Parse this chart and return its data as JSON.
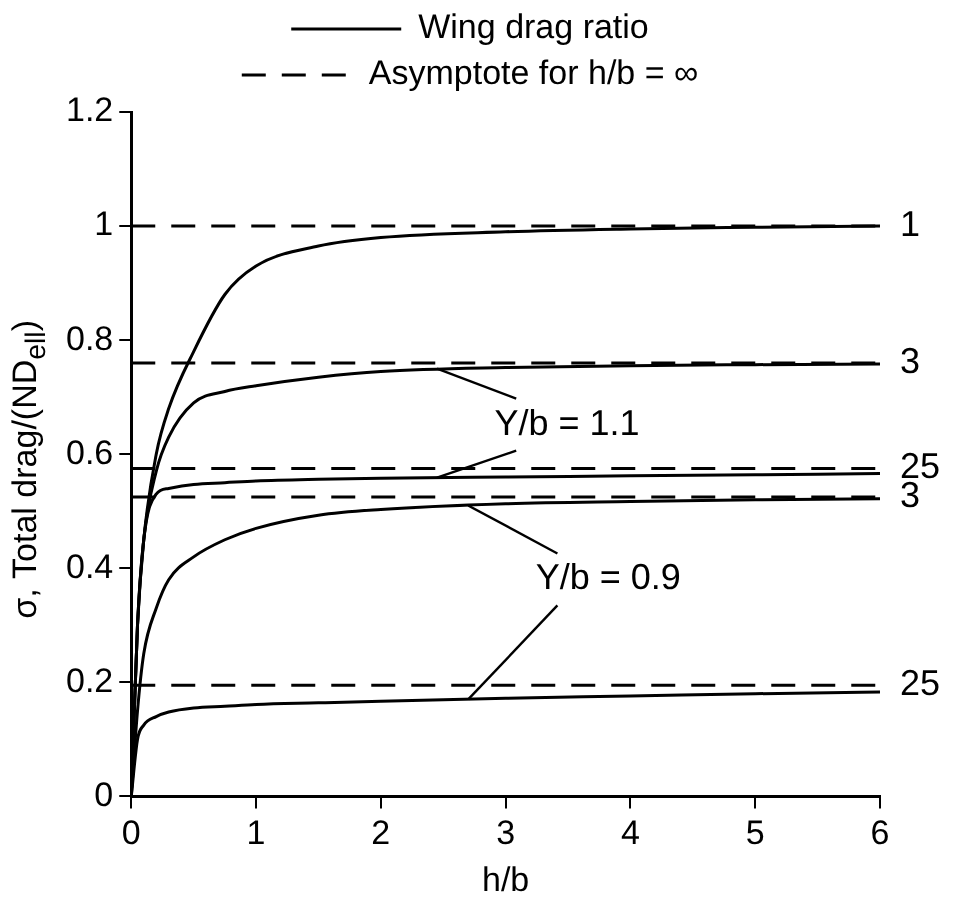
{
  "chart_data": {
    "type": "line",
    "xlabel": "h/b",
    "ylabel": "σ, Total drag/(ND$_{ell}$)",
    "xlim": [
      0,
      6
    ],
    "ylim": [
      0,
      1.2
    ],
    "xticks": [
      0,
      1,
      2,
      3,
      4,
      5,
      6
    ],
    "yticks": [
      0,
      0.2,
      0.4,
      0.6,
      0.8,
      1,
      1.2
    ],
    "grid": false,
    "legend": "top",
    "marker": "none",
    "x": [
      0,
      0.05,
      0.1,
      0.2,
      0.3,
      0.5,
      0.75,
      1,
      1.5,
      2,
      3,
      4,
      5,
      6
    ],
    "series": [
      {
        "name": "Wing drag ratio",
        "color": "#000000",
        "line_style": "solid",
        "values": [
          0,
          0.3,
          0.45,
          0.6,
          0.68,
          0.78,
          0.88,
          0.93,
          0.965,
          0.98,
          0.99,
          0.995,
          0.998,
          1.0
        ]
      },
      {
        "color": "#000000",
        "line_style": "solid",
        "values": [
          0,
          0.3,
          0.45,
          0.57,
          0.63,
          0.69,
          0.71,
          0.72,
          0.735,
          0.745,
          0.752,
          0.755,
          0.757,
          0.758
        ]
      },
      {
        "color": "#000000",
        "line_style": "solid",
        "values": [
          0,
          0.3,
          0.45,
          0.53,
          0.54,
          0.547,
          0.55,
          0.553,
          0.556,
          0.558,
          0.56,
          0.562,
          0.564,
          0.566
        ]
      },
      {
        "color": "#000000",
        "line_style": "solid",
        "values": [
          0,
          0.15,
          0.25,
          0.33,
          0.38,
          0.42,
          0.45,
          0.47,
          0.493,
          0.503,
          0.513,
          0.517,
          0.52,
          0.522
        ]
      },
      {
        "color": "#000000",
        "line_style": "solid",
        "values": [
          0,
          0.1,
          0.125,
          0.14,
          0.148,
          0.155,
          0.158,
          0.161,
          0.164,
          0.167,
          0.172,
          0.176,
          0.18,
          0.183
        ]
      },
      {
        "name": "Asymptote for h/b = ∞",
        "color": "#000000",
        "line_style": "dashed",
        "values": [
          1,
          1,
          1,
          1,
          1,
          1,
          1,
          1,
          1,
          1,
          1,
          1,
          1,
          1
        ]
      },
      {
        "color": "#000000",
        "line_style": "dashed",
        "values": [
          0.76,
          0.76,
          0.76,
          0.76,
          0.76,
          0.76,
          0.76,
          0.76,
          0.76,
          0.76,
          0.76,
          0.76,
          0.76,
          0.76
        ]
      },
      {
        "color": "#000000",
        "line_style": "dashed",
        "values": [
          0.575,
          0.575,
          0.575,
          0.575,
          0.575,
          0.575,
          0.575,
          0.575,
          0.575,
          0.575,
          0.575,
          0.575,
          0.575,
          0.575
        ]
      },
      {
        "color": "#000000",
        "line_style": "dashed",
        "values": [
          0.525,
          0.525,
          0.525,
          0.525,
          0.525,
          0.525,
          0.525,
          0.525,
          0.525,
          0.525,
          0.525,
          0.525,
          0.525,
          0.525
        ]
      },
      {
        "color": "#000000",
        "line_style": "dashed",
        "values": [
          0.195,
          0.195,
          0.195,
          0.195,
          0.195,
          0.195,
          0.195,
          0.195,
          0.195,
          0.195,
          0.195,
          0.195,
          0.195,
          0.195
        ]
      }
    ],
    "annotations": [
      {
        "text": "1",
        "x": 6,
        "y": 1
      },
      {
        "text": "3",
        "x": 6,
        "y": 0.76
      },
      {
        "text": "25",
        "x": 6,
        "y": 0.575
      },
      {
        "text": "3",
        "x": 6,
        "y": 0.525
      },
      {
        "text": "25",
        "x": 6,
        "y": 0.195
      },
      {
        "text": "Y/b = 1.1",
        "x": 2.45,
        "y": 0.75
      },
      {
        "text": "Y/b = 0.9",
        "x": 2.7,
        "y": 0.17
      }
    ]
  }
}
